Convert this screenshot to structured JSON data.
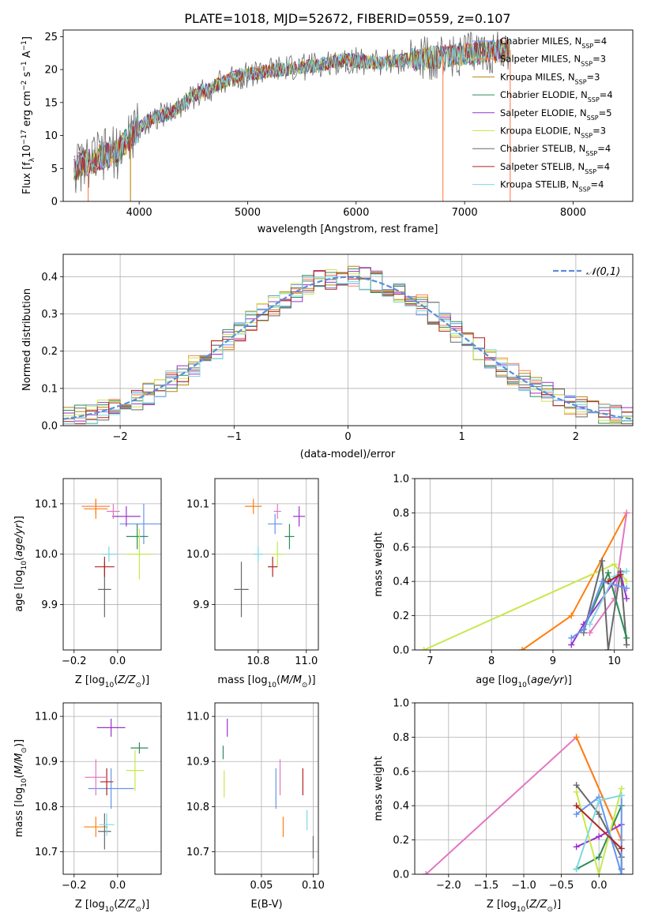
{
  "title": "PLATE=1018, MJD=52672, FIBERID=0559, z=0.107",
  "colors": {
    "Chabrier MILES": "#6495ed",
    "Salpeter MILES": "#ff7f50",
    "Kroupa MILES": "#b8860b",
    "Chabrier ELODIE": "#2e8b57",
    "Salpeter ELODIE": "#9932cc",
    "Kroupa ELODIE": "#c7e84c",
    "Chabrier STELIB": "#696969",
    "Salpeter STELIB": "#b22222",
    "Kroupa STELIB": "#7fd8e0",
    "weight_lines": [
      "#ff7f0e",
      "#e377c2",
      "#696969",
      "#2e8b57",
      "#9932cc",
      "#c7e84c",
      "#6495ed",
      "#7fd8e0",
      "#b22222"
    ]
  },
  "chart_data": [
    {
      "id": "spectrum",
      "type": "line",
      "xlabel": "wavelength [Angstrom, rest frame]",
      "ylabel": "Flux [f_λ 10^-17 erg cm^-2 s^-1 A^-1]",
      "xlim": [
        3300,
        8550
      ],
      "ylim": [
        0,
        26
      ],
      "xticks": [
        4000,
        5000,
        6000,
        7000,
        8000
      ],
      "yticks": [
        0,
        5,
        10,
        15,
        20,
        25
      ],
      "legend": [
        "Chabrier MILES, N_SSP=4",
        "Salpeter MILES, N_SSP=3",
        "Kroupa MILES, N_SSP=3",
        "Chabrier ELODIE, N_SSP=4",
        "Salpeter ELODIE, N_SSP=5",
        "Kroupa ELODIE, N_SSP=3",
        "Chabrier STELIB, N_SSP=4",
        "Salpeter STELIB, N_SSP=4",
        "Kroupa STELIB, N_SSP=4"
      ],
      "legend_placement": "right",
      "profile": {
        "x": [
          3400,
          3600,
          3800,
          3950,
          4100,
          4300,
          4500,
          4700,
          4900,
          5100,
          5300,
          5600,
          5900,
          6200,
          6500,
          6800,
          7100,
          7400
        ],
        "y": [
          5,
          6.5,
          7.5,
          10.5,
          12.5,
          13.5,
          16,
          17.5,
          19,
          19.5,
          20,
          20.5,
          21.5,
          21,
          21.5,
          22,
          22.5,
          23
        ]
      },
      "drops": [
        3530,
        3920,
        6800,
        7420
      ]
    },
    {
      "id": "residual-histogram",
      "type": "bar",
      "xlabel": "(data-model)/error",
      "ylabel": "Normed distribution",
      "xlim": [
        -2.5,
        2.5
      ],
      "ylim": [
        0,
        0.46
      ],
      "xticks": [
        -2,
        -1,
        0,
        1,
        2
      ],
      "yticks": [
        0,
        0.1,
        0.2,
        0.3,
        0.4
      ],
      "grid": true,
      "bin_width": 0.1,
      "legend": "𝒩(0,1)",
      "legend_placement": "top-right",
      "curve": {
        "mu": 0,
        "sigma": 1,
        "color": "#5b8ed8"
      }
    },
    {
      "id": "age-vs-Z",
      "type": "scatter",
      "xlabel": "Z [log10(Z/Z⊙)]",
      "ylabel": "age [log10(age/yr)]",
      "xlim": [
        -0.25,
        0.2
      ],
      "ylim": [
        9.81,
        10.15
      ],
      "xticks": [
        -0.2,
        0.0
      ],
      "yticks": [
        9.9,
        10.0,
        10.1
      ],
      "grid": true,
      "points": [
        {
          "c": "#6495ed",
          "x": 0.12,
          "y": 10.06,
          "xe": 0.22,
          "ye": 0.08
        },
        {
          "c": "#ff7f50",
          "x": -0.1,
          "y": 10.095,
          "xe": 0.13,
          "ye": 0.03
        },
        {
          "c": "#ff7f0e",
          "x": -0.1,
          "y": 10.09,
          "xe": 0.11,
          "ye": 0.04
        },
        {
          "c": "#2e8b57",
          "x": 0.09,
          "y": 10.035,
          "xe": 0.1,
          "ye": 0.05
        },
        {
          "c": "#9932cc",
          "x": 0.04,
          "y": 10.075,
          "xe": 0.13,
          "ye": 0.04
        },
        {
          "c": "#c7e84c",
          "x": 0.1,
          "y": 10.0,
          "xe": 0.12,
          "ye": 0.1
        },
        {
          "c": "#696969",
          "x": -0.06,
          "y": 9.93,
          "xe": 0.06,
          "ye": 0.11
        },
        {
          "c": "#b22222",
          "x": -0.06,
          "y": 9.975,
          "xe": 0.09,
          "ye": 0.04
        },
        {
          "c": "#7fd8e0",
          "x": -0.04,
          "y": 10.0,
          "xe": 0.07,
          "ye": 0.03
        },
        {
          "c": "#e377c2",
          "x": -0.02,
          "y": 10.085,
          "xe": 0.06,
          "ye": 0.03
        }
      ]
    },
    {
      "id": "age-vs-mass",
      "type": "scatter",
      "xlabel": "mass [log10(M/M⊙)]",
      "ylabel": "",
      "xlim": [
        10.62,
        11.05
      ],
      "ylim": [
        9.81,
        10.15
      ],
      "xticks": [
        10.8,
        11.0
      ],
      "yticks": [
        9.9,
        10.0,
        10.1
      ],
      "grid": true,
      "points": [
        {
          "c": "#6495ed",
          "x": 10.87,
          "y": 10.06,
          "xe": 0.06,
          "ye": 0.04
        },
        {
          "c": "#ff7f0e",
          "x": 10.78,
          "y": 10.095,
          "xe": 0.07,
          "ye": 0.03
        },
        {
          "c": "#2e8b57",
          "x": 10.93,
          "y": 10.035,
          "xe": 0.04,
          "ye": 0.05
        },
        {
          "c": "#9932cc",
          "x": 10.97,
          "y": 10.075,
          "xe": 0.05,
          "ye": 0.04
        },
        {
          "c": "#c7e84c",
          "x": 10.88,
          "y": 10.0,
          "xe": 0.05,
          "ye": 0.05
        },
        {
          "c": "#696969",
          "x": 10.73,
          "y": 9.93,
          "xe": 0.06,
          "ye": 0.11
        },
        {
          "c": "#b22222",
          "x": 10.86,
          "y": 9.975,
          "xe": 0.04,
          "ye": 0.04
        },
        {
          "c": "#7fd8e0",
          "x": 10.8,
          "y": 10.0,
          "xe": 0.04,
          "ye": 0.03
        },
        {
          "c": "#e377c2",
          "x": 10.88,
          "y": 10.085,
          "xe": 0.03,
          "ye": 0.03
        }
      ]
    },
    {
      "id": "weight-vs-age",
      "type": "line",
      "xlabel": "age [log10(age/yr)]",
      "ylabel": "mass weight",
      "xlim": [
        6.75,
        10.3
      ],
      "ylim": [
        0,
        1.0
      ],
      "xticks": [
        7,
        8,
        9,
        10
      ],
      "yticks": [
        0.0,
        0.2,
        0.4,
        0.6,
        0.8,
        1.0
      ],
      "grid": true,
      "series": [
        {
          "c": "#ff7f0e",
          "x": [
            8.5,
            9.3,
            10.2
          ],
          "y": [
            0,
            0.2,
            0.8
          ]
        },
        {
          "c": "#e377c2",
          "x": [
            10.2,
            10.0,
            9.6
          ],
          "y": [
            0.8,
            0.3,
            0.1
          ]
        },
        {
          "c": "#c7e84c",
          "x": [
            6.9,
            10.0,
            10.2
          ],
          "y": [
            0,
            0.5,
            0.4
          ]
        },
        {
          "c": "#696969",
          "x": [
            9.5,
            9.8,
            9.9,
            10.1,
            10.2
          ],
          "y": [
            0.1,
            0.52,
            0,
            0.46,
            0.03
          ]
        },
        {
          "c": "#2e8b57",
          "x": [
            9.5,
            9.9,
            10.2
          ],
          "y": [
            0.12,
            0.45,
            0.07
          ]
        },
        {
          "c": "#9932cc",
          "x": [
            9.3,
            9.5,
            10.1,
            10.2
          ],
          "y": [
            0.03,
            0.15,
            0.45,
            0.3
          ]
        },
        {
          "c": "#6495ed",
          "x": [
            9.3,
            9.5,
            9.8,
            10.2
          ],
          "y": [
            0.07,
            0.12,
            0.4,
            0.36
          ]
        },
        {
          "c": "#7fd8e0",
          "x": [
            9.6,
            10.0,
            10.2
          ],
          "y": [
            0.15,
            0.43,
            0.46
          ]
        },
        {
          "c": "#b22222",
          "x": [
            9.9,
            10.1
          ],
          "y": [
            0.4,
            0.44
          ]
        }
      ]
    },
    {
      "id": "mass-vs-Z",
      "type": "scatter",
      "xlabel": "Z [log10(Z/Z⊙)]",
      "ylabel": "mass [log10(M/M⊙)]",
      "xlim": [
        -0.25,
        0.2
      ],
      "ylim": [
        10.65,
        11.03
      ],
      "xticks": [
        -0.2,
        0.0
      ],
      "yticks": [
        10.7,
        10.8,
        10.9,
        11.0
      ],
      "grid": true,
      "points": [
        {
          "c": "#6495ed",
          "x": -0.03,
          "y": 10.84,
          "xe": 0.21,
          "ye": 0.09
        },
        {
          "c": "#ff7f0e",
          "x": -0.1,
          "y": 10.755,
          "xe": 0.11,
          "ye": 0.045
        },
        {
          "c": "#2e8b57",
          "x": 0.1,
          "y": 10.93,
          "xe": 0.08,
          "ye": 0.025
        },
        {
          "c": "#9932cc",
          "x": -0.03,
          "y": 10.975,
          "xe": 0.13,
          "ye": 0.04
        },
        {
          "c": "#c7e84c",
          "x": 0.08,
          "y": 10.88,
          "xe": 0.08,
          "ye": 0.09
        },
        {
          "c": "#696969",
          "x": -0.06,
          "y": 10.745,
          "xe": 0.06,
          "ye": 0.08
        },
        {
          "c": "#b22222",
          "x": -0.05,
          "y": 10.855,
          "xe": 0.06,
          "ye": 0.06
        },
        {
          "c": "#7fd8e0",
          "x": -0.05,
          "y": 10.76,
          "xe": 0.07,
          "ye": 0.05
        },
        {
          "c": "#e377c2",
          "x": -0.1,
          "y": 10.865,
          "xe": 0.1,
          "ye": 0.08
        }
      ]
    },
    {
      "id": "mass-vs-EBV",
      "type": "scatter",
      "xlabel": "E(B-V)",
      "ylabel": "",
      "xlim": [
        0.005,
        0.105
      ],
      "ylim": [
        10.65,
        11.03
      ],
      "xticks": [
        0.05,
        0.1
      ],
      "yticks": [
        10.7,
        10.8,
        10.9,
        11.0
      ],
      "grid": true,
      "points": [
        {
          "c": "#2e8b57",
          "x": 0.013,
          "y": 10.92,
          "xe": 0.0,
          "ye": 0.03
        },
        {
          "c": "#9932cc",
          "x": 0.017,
          "y": 10.975,
          "xe": 0.0,
          "ye": 0.04
        },
        {
          "c": "#c7e84c",
          "x": 0.014,
          "y": 10.85,
          "xe": 0.0,
          "ye": 0.06
        },
        {
          "c": "#6495ed",
          "x": 0.064,
          "y": 10.84,
          "xe": 0.0,
          "ye": 0.09
        },
        {
          "c": "#e377c2",
          "x": 0.068,
          "y": 10.865,
          "xe": 0.0,
          "ye": 0.08
        },
        {
          "c": "#ff7f0e",
          "x": 0.071,
          "y": 10.755,
          "xe": 0.0,
          "ye": 0.045
        },
        {
          "c": "#b22222",
          "x": 0.09,
          "y": 10.855,
          "xe": 0.0,
          "ye": 0.06
        },
        {
          "c": "#7fd8e0",
          "x": 0.094,
          "y": 10.77,
          "xe": 0.0,
          "ye": 0.045
        },
        {
          "c": "#696969",
          "x": 0.1,
          "y": 10.71,
          "xe": 0.0,
          "ye": 0.05
        }
      ]
    },
    {
      "id": "weight-vs-Z",
      "type": "line",
      "xlabel": "Z [log10(Z/Z⊙)]",
      "ylabel": "mass weight",
      "xlim": [
        -2.45,
        0.45
      ],
      "ylim": [
        0,
        1.0
      ],
      "xticks": [
        -2.0,
        -1.5,
        -1.0,
        -0.5,
        0.0
      ],
      "yticks": [
        0.0,
        0.2,
        0.4,
        0.6,
        0.8,
        1.0
      ],
      "grid": true,
      "series": [
        {
          "c": "#e377c2",
          "x": [
            -2.3,
            -0.3,
            0.3
          ],
          "y": [
            0,
            0.8,
            0.2
          ]
        },
        {
          "c": "#ff7f0e",
          "x": [
            -0.3,
            0.3
          ],
          "y": [
            0.8,
            0.2
          ]
        },
        {
          "c": "#696969",
          "x": [
            -0.3,
            0.0,
            0.3,
            0.3
          ],
          "y": [
            0.52,
            0.35,
            0.1,
            0.03
          ]
        },
        {
          "c": "#2e8b57",
          "x": [
            -0.3,
            0.0,
            0.3
          ],
          "y": [
            0.03,
            0.1,
            0.4
          ]
        },
        {
          "c": "#9932cc",
          "x": [
            -0.3,
            0.0,
            0.3
          ],
          "y": [
            0.16,
            0.22,
            0.29
          ]
        },
        {
          "c": "#c7e84c",
          "x": [
            -0.3,
            0.0,
            0.3
          ],
          "y": [
            0.48,
            0.0,
            0.5
          ]
        },
        {
          "c": "#6495ed",
          "x": [
            -0.3,
            0.0,
            0.3,
            0.3
          ],
          "y": [
            0.35,
            0.45,
            0.0,
            0.46
          ]
        },
        {
          "c": "#7fd8e0",
          "x": [
            -0.3,
            0.0,
            0.3
          ],
          "y": [
            0.03,
            0.43,
            0.46
          ]
        },
        {
          "c": "#b22222",
          "x": [
            -0.3,
            0.3
          ],
          "y": [
            0.4,
            0.15
          ]
        }
      ]
    }
  ]
}
